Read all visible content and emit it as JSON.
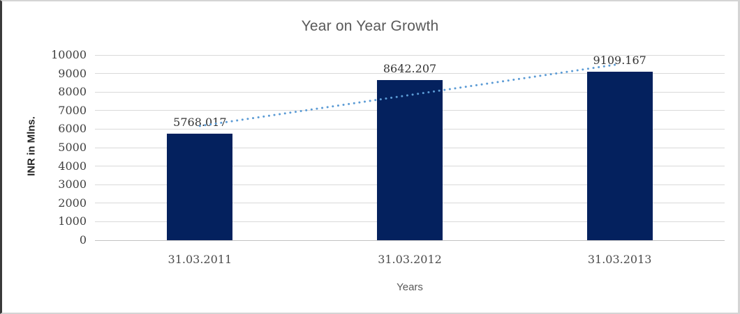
{
  "chart_data": {
    "type": "bar",
    "title": "Year on Year Growth",
    "xlabel": "Years",
    "ylabel": "INR in Mlns.",
    "categories": [
      "31.03.2011",
      "31.03.2012",
      "31.03.2013"
    ],
    "values": [
      5768.017,
      8642.207,
      9109.167
    ],
    "data_labels": [
      "5768.017",
      "8642.207",
      "9109.167"
    ],
    "ylim": [
      0,
      10000
    ],
    "ytick_step": 1000,
    "ytick_labels": [
      "0",
      "1000",
      "2000",
      "3000",
      "4000",
      "5000",
      "6000",
      "7000",
      "8000",
      "9000",
      "10000"
    ],
    "grid": true,
    "legend": "none",
    "bar_color": "#04215e",
    "grid_color": "#d9d9d9",
    "axis_color": "#c2c2c2",
    "title_color": "#595959",
    "label_color": "#333333",
    "trendline": {
      "type": "linear",
      "style": "dotted",
      "color": "#5b9bd5",
      "fit_values_at_categories": [
        6169.2,
        7839.8,
        9510.4
      ]
    }
  }
}
